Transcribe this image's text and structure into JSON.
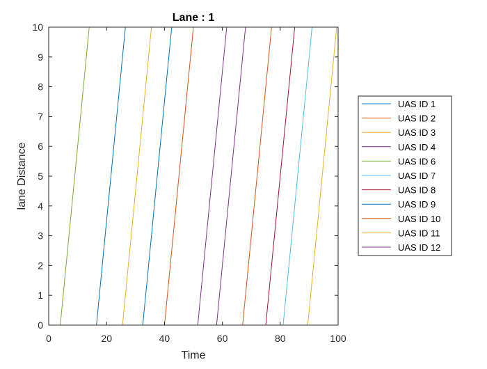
{
  "chart_data": {
    "type": "line",
    "title": "Lane : 1",
    "xlabel": "Time",
    "ylabel": "lane Distance",
    "xlim": [
      0,
      100
    ],
    "ylim": [
      0,
      10
    ],
    "xticks": [
      "0",
      "20",
      "40",
      "60",
      "80",
      "100"
    ],
    "yticks": [
      "0",
      "1",
      "2",
      "3",
      "4",
      "5",
      "6",
      "7",
      "8",
      "9",
      "10"
    ],
    "grid": false,
    "legend_position": "outside-right",
    "series": [
      {
        "name": "UAS ID 1",
        "color": "#0072BD",
        "x": [
          32.5,
          42.5
        ],
        "y": [
          0,
          10
        ]
      },
      {
        "name": "UAS ID 2",
        "color": "#D95319",
        "x": [
          40.0,
          50.0
        ],
        "y": [
          0,
          10
        ]
      },
      {
        "name": "UAS ID 3",
        "color": "#EDB120",
        "x": [
          25.5,
          35.5
        ],
        "y": [
          0,
          10
        ]
      },
      {
        "name": "UAS ID 4",
        "color": "#7E2F8E",
        "x": [
          51.5,
          61.5
        ],
        "y": [
          0,
          10
        ]
      },
      {
        "name": "UAS ID 6",
        "color": "#77AC30",
        "x": [
          4.0,
          14.0
        ],
        "y": [
          0,
          10
        ]
      },
      {
        "name": "UAS ID 7",
        "color": "#4DBEEE",
        "x": [
          81.0,
          91.0
        ],
        "y": [
          0,
          10
        ]
      },
      {
        "name": "UAS ID 8",
        "color": "#A2142F",
        "x": [
          75.0,
          85.0
        ],
        "y": [
          0,
          10
        ]
      },
      {
        "name": "UAS ID 9",
        "color": "#0072BD",
        "x": [
          16.5,
          26.5
        ],
        "y": [
          0,
          10
        ]
      },
      {
        "name": "UAS ID 10",
        "color": "#D95319",
        "x": [
          67.0,
          77.0
        ],
        "y": [
          0,
          10
        ]
      },
      {
        "name": "UAS ID 11",
        "color": "#EDB120",
        "x": [
          89.5,
          99.5
        ],
        "y": [
          0,
          10
        ]
      },
      {
        "name": "UAS ID 12",
        "color": "#7E2F8E",
        "x": [
          58.0,
          68.0
        ],
        "y": [
          0,
          10
        ]
      }
    ]
  }
}
